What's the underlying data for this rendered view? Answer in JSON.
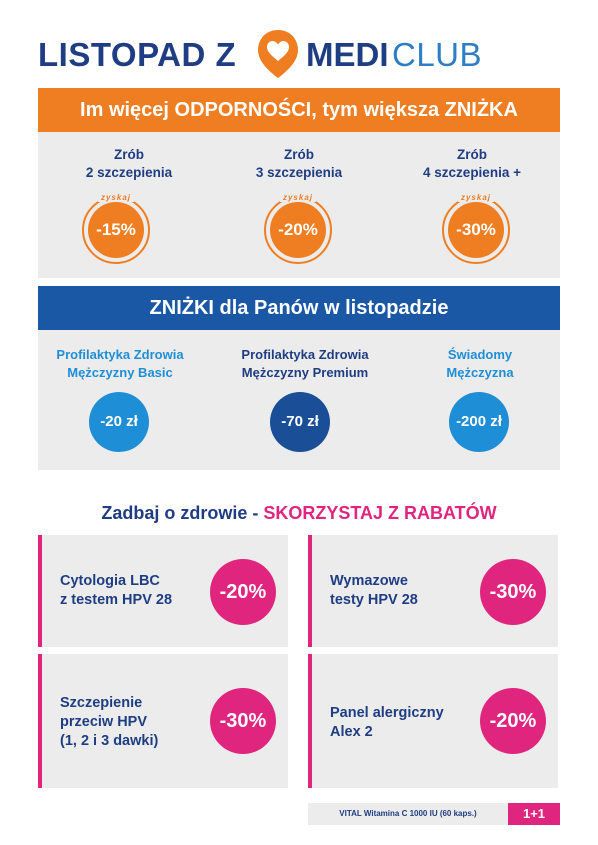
{
  "header": {
    "title": "LISTOPAD Z",
    "brand_medi": "MEDI",
    "brand_club": "CLUB"
  },
  "section1": {
    "banner": "Im więcej ODPORNOŚCI, tym większa ZNIŻKA",
    "columns": [
      {
        "line1": "Zrób",
        "line2": "2 szczepienia",
        "badge_top": "zyskaj",
        "discount": "-15%"
      },
      {
        "line1": "Zrób",
        "line2": "3 szczepienia",
        "badge_top": "zyskaj",
        "discount": "-20%"
      },
      {
        "line1": "Zrób",
        "line2": "4 szczepienia +",
        "badge_top": "zyskaj",
        "discount": "-30%"
      }
    ]
  },
  "section2": {
    "banner": "ZNIŻKI dla Panów w listopadzie",
    "columns": [
      {
        "line1": "Profilaktyka Zdrowia",
        "line2": "Mężczyzny Basic",
        "discount": "-20 zł"
      },
      {
        "line1": "Profilaktyka Zdrowia",
        "line2": "Mężczyzny Premium",
        "discount": "-70 zł"
      },
      {
        "line1": "Świadomy",
        "line2": "Mężczyzna",
        "discount": "-200 zł"
      }
    ]
  },
  "section3": {
    "heading_a": "Zadbaj o zdrowie - ",
    "heading_b": "SKORZYSTAJ Z RABATÓW",
    "cards": [
      {
        "lines": [
          "Cytologia LBC",
          "z testem HPV 28"
        ],
        "discount": "-20%"
      },
      {
        "lines": [
          "Wymazowe",
          "testy HPV 28"
        ],
        "discount": "-30%"
      },
      {
        "lines": [
          "Szczepienie",
          "przeciw HPV",
          "(1, 2 i 3 dawki)"
        ],
        "discount": "-30%"
      },
      {
        "lines": [
          "Panel alergiczny",
          "Alex 2"
        ],
        "discount": "-20%"
      }
    ]
  },
  "footer": {
    "note": "VITAL Witamina C 1000 IU (60 kaps.)",
    "badge": "1+1"
  },
  "colors": {
    "navy": "#1f3d82",
    "orange": "#ef7d22",
    "blue": "#1a57a5",
    "light_blue": "#1e8fd6",
    "pink": "#e0257e",
    "panel_gray": "#ececec"
  }
}
